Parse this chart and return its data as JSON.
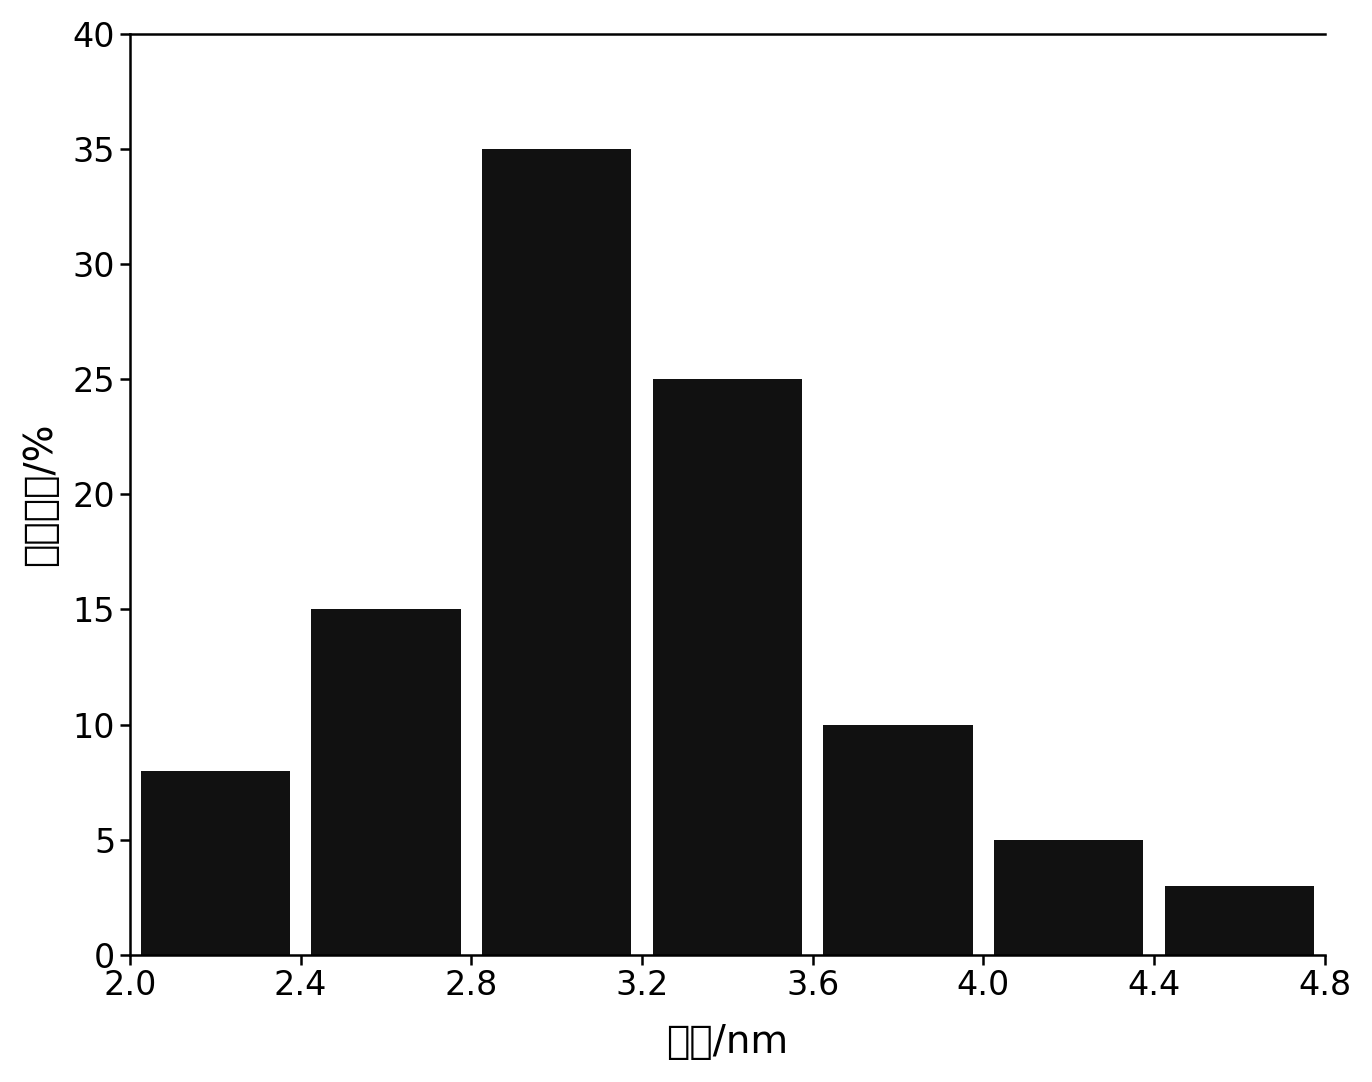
{
  "bar_centers": [
    2.2,
    2.6,
    3.0,
    3.4,
    3.8,
    4.2,
    4.6
  ],
  "bar_heights": [
    8,
    15,
    35,
    25,
    10,
    5,
    3
  ],
  "bar_width": 0.35,
  "bar_color": "#111111",
  "bar_edgecolor": "#111111",
  "xlim": [
    2.0,
    4.8
  ],
  "ylim": [
    0,
    40
  ],
  "xticks": [
    2.0,
    2.4,
    2.8,
    3.2,
    3.6,
    4.0,
    4.4,
    4.8
  ],
  "yticks": [
    0,
    5,
    10,
    15,
    20,
    25,
    30,
    35,
    40
  ],
  "xlabel": "粒径/nm",
  "ylabel": "分布比例/%",
  "xlabel_fontsize": 28,
  "ylabel_fontsize": 28,
  "tick_fontsize": 24,
  "background_color": "#ffffff",
  "spine_linewidth": 1.8
}
